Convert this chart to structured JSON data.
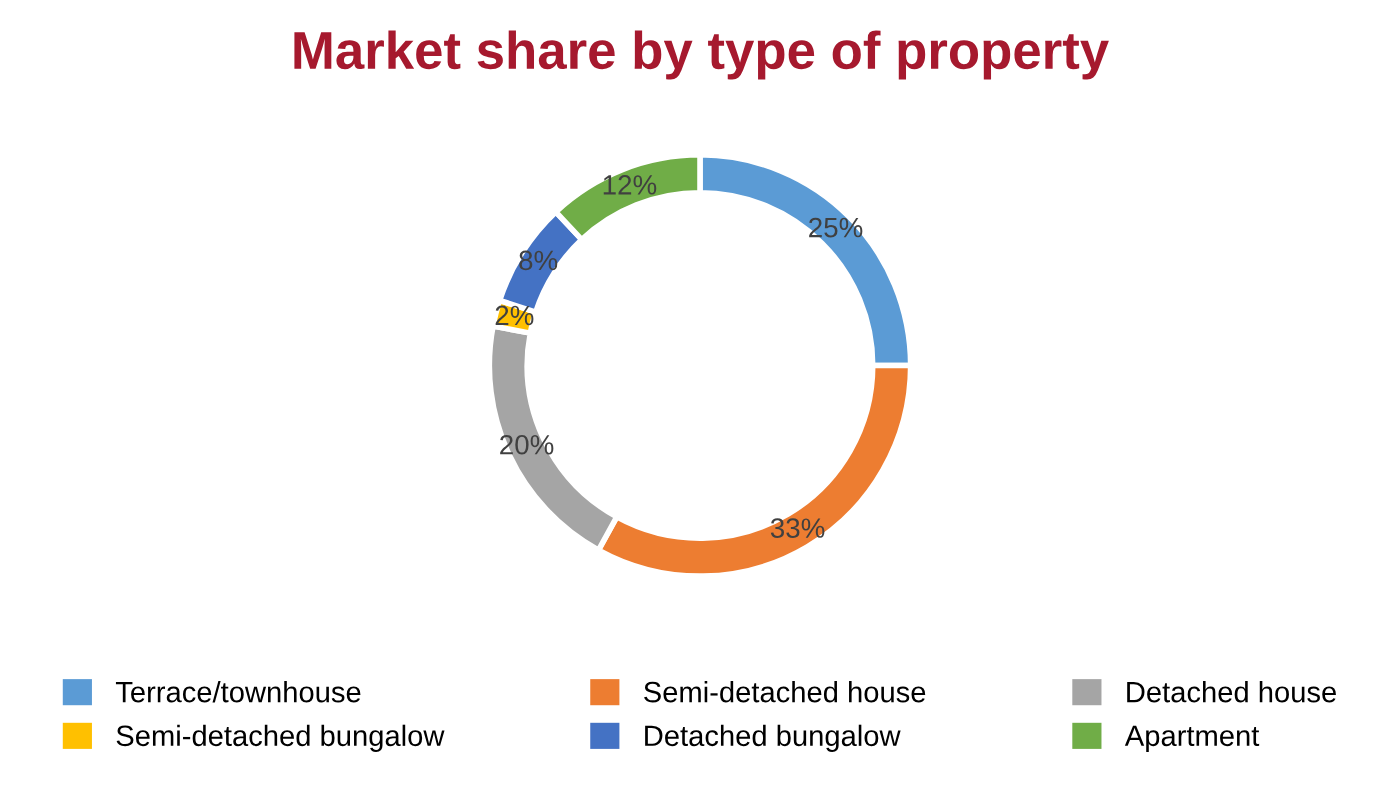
{
  "chart_data": {
    "type": "donut",
    "title": "Market share by type of property",
    "categories": [
      "Terrace/townhouse",
      "Semi-detached house",
      "Detached house",
      "Semi-detached bungalow",
      "Detached bungalow",
      "Apartment"
    ],
    "values": [
      25,
      33,
      20,
      2,
      8,
      12
    ],
    "colors": [
      "#5b9bd5",
      "#ed7d31",
      "#a5a5a5",
      "#ffc000",
      "#4472c4",
      "#70ad47"
    ],
    "value_labels": [
      "25%",
      "33%",
      "20%",
      "2%",
      "8%",
      "12%"
    ],
    "legend": "bottom"
  }
}
